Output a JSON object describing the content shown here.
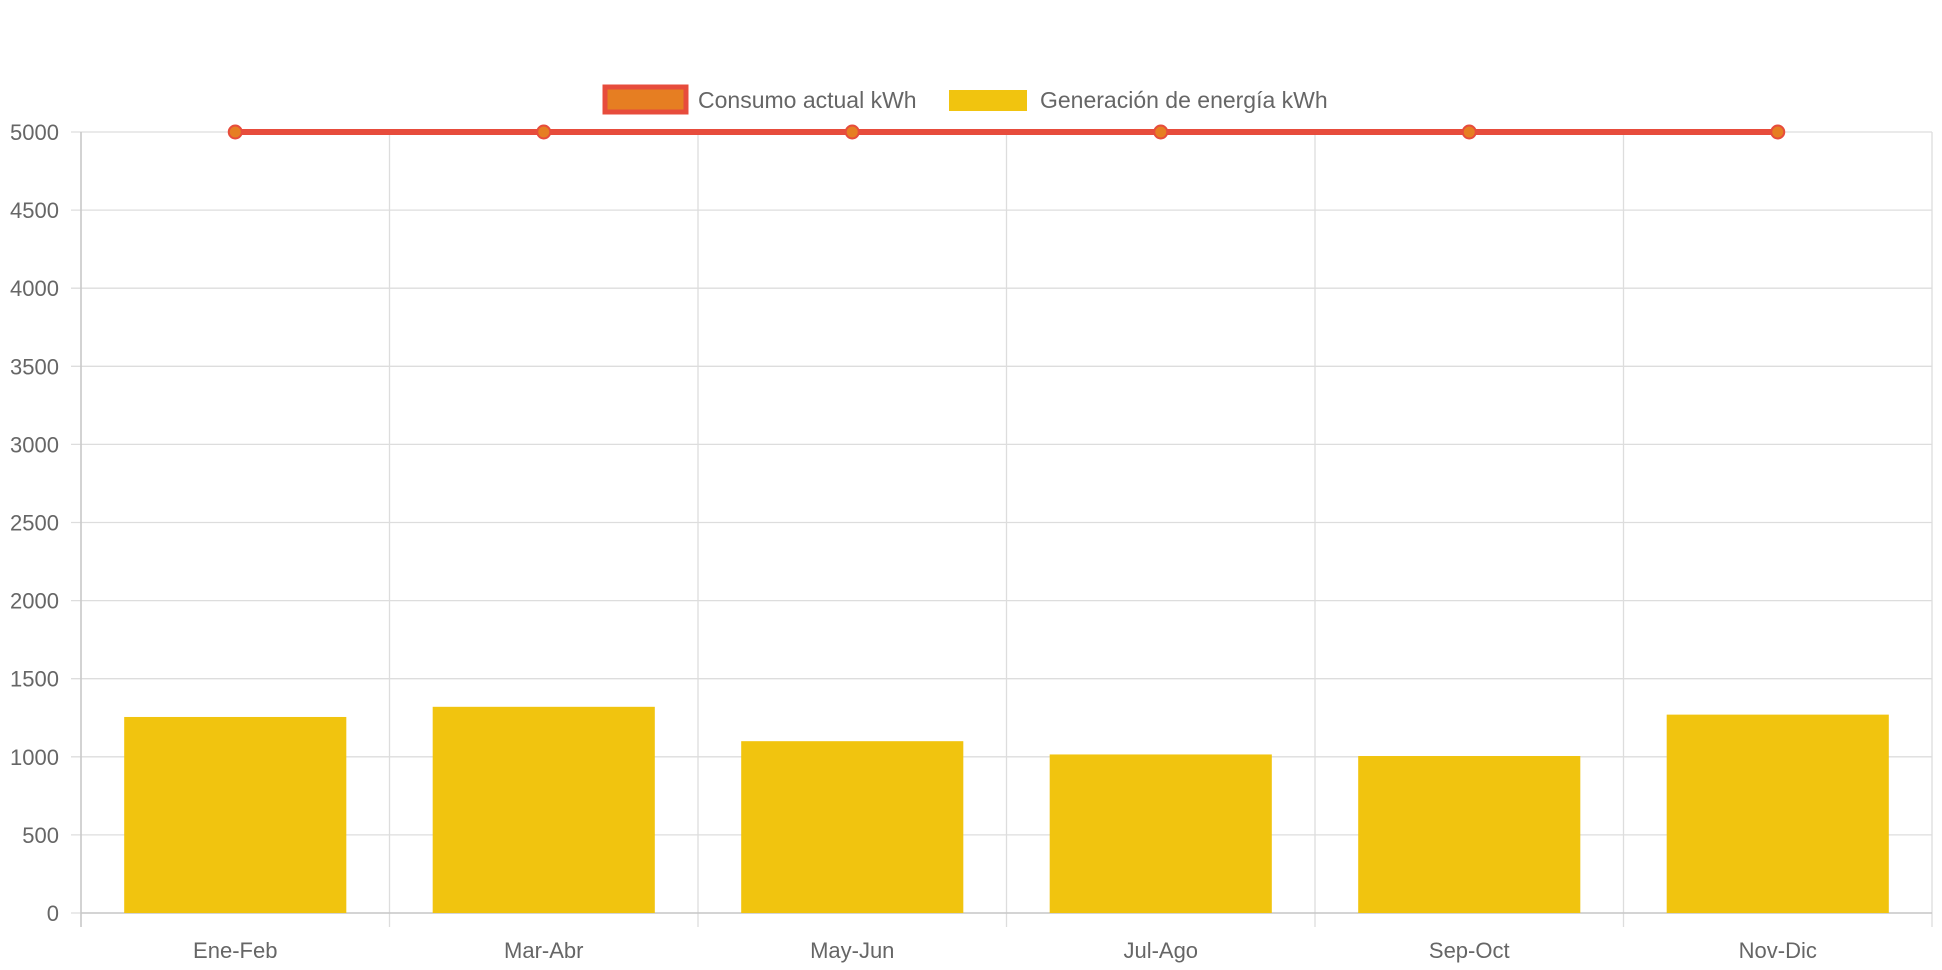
{
  "chart_data": {
    "type": "bar",
    "categories": [
      "Ene-Feb",
      "Mar-Abr",
      "May-Jun",
      "Jul-Ago",
      "Sep-Oct",
      "Nov-Dic"
    ],
    "series": [
      {
        "name": "Consumo actual kWh",
        "type": "line",
        "values": [
          5000,
          5000,
          5000,
          5000,
          5000,
          5000
        ],
        "color": "#e74c3c",
        "point_color": "#e67e22"
      },
      {
        "name": "Generación de energía kWh",
        "type": "bar",
        "values": [
          1255,
          1320,
          1100,
          1015,
          1005,
          1270
        ],
        "color": "#f1c40f"
      }
    ],
    "ylim": [
      0,
      5000
    ],
    "yticks": [
      0,
      500,
      1000,
      1500,
      2000,
      2500,
      3000,
      3500,
      4000,
      4500,
      5000
    ],
    "grid": true,
    "legend_position": "top-center"
  }
}
